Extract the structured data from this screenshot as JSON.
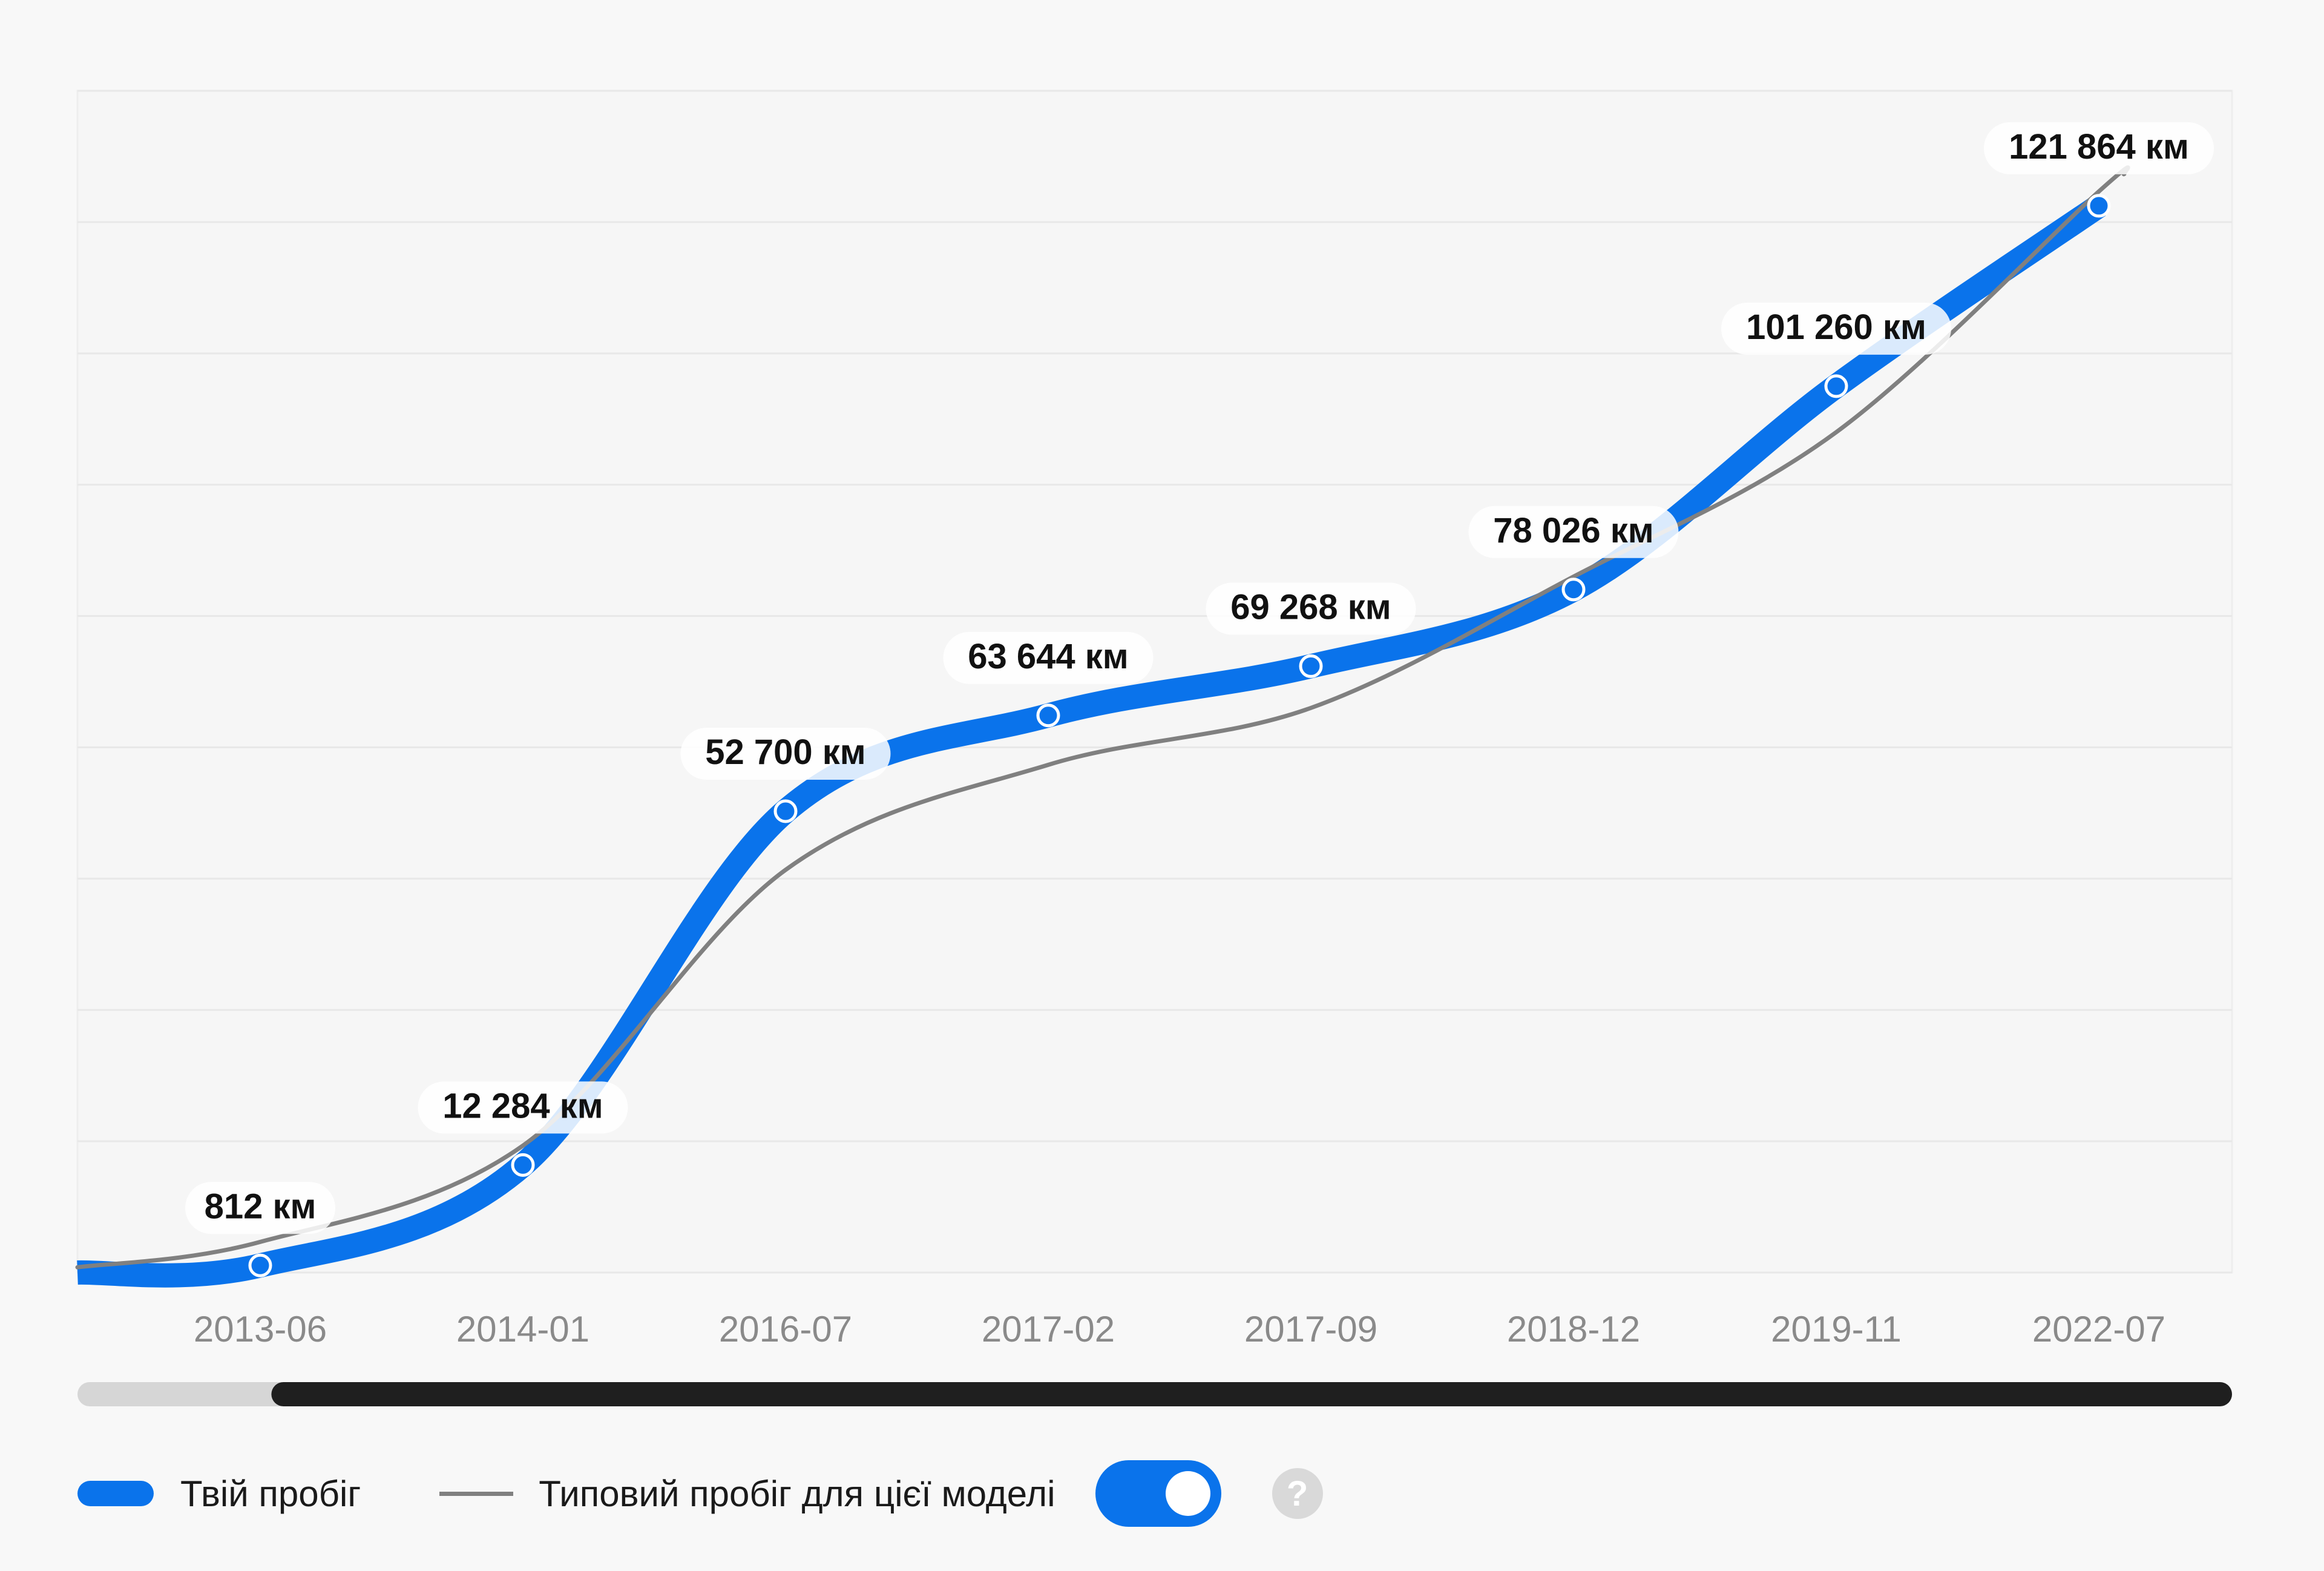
{
  "chart_data": {
    "type": "line",
    "x": [
      "2013-06",
      "2014-01",
      "2016-07",
      "2017-02",
      "2017-09",
      "2018-12",
      "2019-11",
      "2022-07"
    ],
    "series": [
      {
        "name": "Твій пробіг",
        "values": [
          812,
          12284,
          52700,
          63644,
          69268,
          78026,
          101260,
          121864
        ],
        "labels": [
          "812 км",
          "12 284 км",
          "52 700 км",
          "63 644 км",
          "69 268 км",
          "78 026 км",
          "101 260 км",
          "121 864 км"
        ],
        "color": "#0a73eb"
      },
      {
        "name": "Типовий пробіг для цієї моделі",
        "values": [
          3500,
          14500,
          46000,
          58000,
          64500,
          79500,
          96000,
          123500
        ],
        "color": "#808080"
      }
    ],
    "ylim": [
      0,
      135000
    ],
    "grid": true,
    "legend_position": "bottom-left"
  },
  "legend": {
    "user_label": "Твій пробіг",
    "typical_label": "Типовий пробіг для цієї моделі",
    "toggle_on": true,
    "help_symbol": "?"
  },
  "scrollbar": {
    "visible_fraction": 0.91
  },
  "colors": {
    "user": "#0a73eb",
    "typical": "#808080",
    "grid": "#e8e8e8",
    "scroll_thumb": "#1f1f1f",
    "scroll_track": "#d6d6d6"
  }
}
